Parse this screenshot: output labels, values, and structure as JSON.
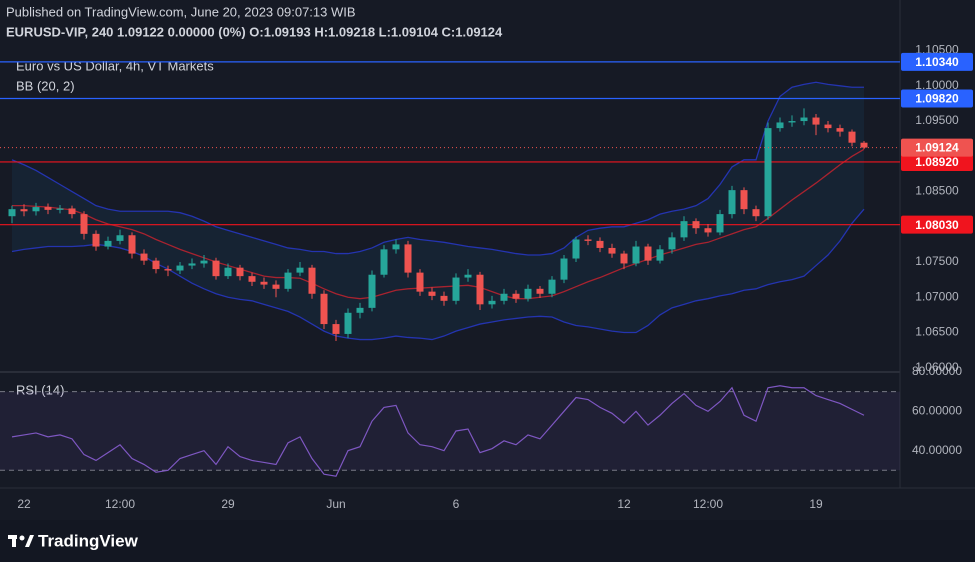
{
  "header": {
    "published": "Published on TradingView.com, June 20, 2023 09:07:13 WIB",
    "symbol_line": "EURUSD-VIP, 240  1.09122  0.00000 (0%)  O:1.09193  H:1.09218  L:1.09104  C:1.09124"
  },
  "chart_data": {
    "type": "candlestick",
    "title": "Euro vs US Dollar, 4h, VT Markets",
    "indicator": "BB (20, 2)",
    "categories": [
      null,
      "22",
      null,
      null,
      null,
      null,
      null,
      null,
      null,
      "12:00",
      null,
      null,
      null,
      null,
      null,
      null,
      null,
      null,
      "29",
      null,
      null,
      null,
      null,
      null,
      null,
      null,
      null,
      "Jun",
      null,
      null,
      null,
      null,
      null,
      null,
      null,
      null,
      null,
      "6",
      null,
      null,
      null,
      null,
      null,
      null,
      null,
      null,
      null,
      null,
      null,
      null,
      null,
      "12",
      null,
      null,
      null,
      null,
      null,
      null,
      "12:00",
      null,
      null,
      null,
      null,
      null,
      null,
      null,
      null,
      "19",
      null,
      null,
      null,
      null
    ],
    "open": [
      1.0815,
      1.0825,
      1.0822,
      1.0828,
      1.0824,
      1.0826,
      1.0818,
      1.079,
      1.0772,
      1.078,
      1.0788,
      1.0762,
      1.0752,
      1.074,
      1.0738,
      1.0745,
      1.0748,
      1.0752,
      1.073,
      1.0742,
      1.073,
      1.0722,
      1.0718,
      1.0712,
      1.0735,
      1.0742,
      1.0705,
      1.0662,
      1.0648,
      1.0678,
      1.0685,
      1.0732,
      1.0768,
      1.0775,
      1.0735,
      1.0708,
      1.0702,
      1.0695,
      1.0728,
      1.0732,
      1.069,
      1.0695,
      1.0705,
      1.0698,
      1.0712,
      1.0705,
      1.0725,
      1.0755,
      1.0782,
      1.078,
      1.077,
      1.0762,
      1.0748,
      1.0772,
      1.0752,
      1.0768,
      1.0785,
      1.0808,
      1.0798,
      1.0792,
      1.0818,
      1.0852,
      1.0825,
      1.0815,
      1.094,
      1.0948,
      1.095,
      1.0955,
      1.0945,
      1.094,
      1.0935,
      1.09193
    ],
    "high": [
      1.083,
      1.0832,
      1.0834,
      1.0833,
      1.0831,
      1.083,
      1.0822,
      1.0795,
      1.0786,
      1.0796,
      1.0792,
      1.0768,
      1.0756,
      1.0745,
      1.075,
      1.0755,
      1.076,
      1.0756,
      1.0748,
      1.0746,
      1.0735,
      1.0728,
      1.0724,
      1.074,
      1.075,
      1.0746,
      1.071,
      1.0668,
      1.0684,
      1.0692,
      1.0738,
      1.0774,
      1.0782,
      1.078,
      1.074,
      1.0714,
      1.0708,
      1.0734,
      1.074,
      1.0736,
      1.0702,
      1.0712,
      1.071,
      1.0718,
      1.0716,
      1.073,
      1.076,
      1.0786,
      1.0788,
      1.0785,
      1.0776,
      1.0766,
      1.078,
      1.0776,
      1.0774,
      1.0792,
      1.0815,
      1.0812,
      1.0804,
      1.0824,
      1.0858,
      1.0856,
      1.083,
      1.0948,
      1.0955,
      1.0958,
      1.0968,
      1.096,
      1.095,
      1.0945,
      1.0938,
      1.09218
    ],
    "low": [
      1.0805,
      1.0815,
      1.0816,
      1.0818,
      1.0819,
      1.0812,
      1.0782,
      1.0766,
      1.0768,
      1.0775,
      1.0755,
      1.0746,
      1.0734,
      1.073,
      1.0733,
      1.074,
      1.0742,
      1.0725,
      1.0726,
      1.0724,
      1.0716,
      1.0712,
      1.07,
      1.0708,
      1.073,
      1.0698,
      1.0655,
      1.0638,
      1.0642,
      1.067,
      1.068,
      1.0728,
      1.0762,
      1.0728,
      1.0702,
      1.0696,
      1.0688,
      1.069,
      1.0722,
      1.0682,
      1.0684,
      1.069,
      1.0692,
      1.0694,
      1.0699,
      1.07,
      1.072,
      1.075,
      1.0774,
      1.0764,
      1.0756,
      1.074,
      1.0744,
      1.0746,
      1.0748,
      1.0762,
      1.078,
      1.079,
      1.0786,
      1.0788,
      1.0812,
      1.0818,
      1.0808,
      1.081,
      1.0935,
      1.0942,
      1.0944,
      1.093,
      1.0934,
      1.0928,
      1.0914,
      1.09104
    ],
    "close": [
      1.0825,
      1.0822,
      1.0828,
      1.0824,
      1.0826,
      1.0818,
      1.079,
      1.0772,
      1.078,
      1.0788,
      1.0762,
      1.0752,
      1.074,
      1.0738,
      1.0745,
      1.0748,
      1.0752,
      1.073,
      1.0742,
      1.073,
      1.0722,
      1.0718,
      1.0712,
      1.0735,
      1.0742,
      1.0705,
      1.0662,
      1.0648,
      1.0678,
      1.0685,
      1.0732,
      1.0768,
      1.0775,
      1.0735,
      1.0708,
      1.0702,
      1.0695,
      1.0728,
      1.0732,
      1.069,
      1.0695,
      1.0705,
      1.0698,
      1.0712,
      1.0705,
      1.0725,
      1.0755,
      1.0782,
      1.078,
      1.077,
      1.0762,
      1.0748,
      1.0772,
      1.0752,
      1.0768,
      1.0785,
      1.0808,
      1.0798,
      1.0792,
      1.0818,
      1.0852,
      1.0825,
      1.0815,
      1.094,
      1.0948,
      1.095,
      1.0955,
      1.0945,
      1.094,
      1.0935,
      1.09193,
      1.09124
    ],
    "up_color": "#26a69a",
    "down_color": "#ef5350",
    "bb_upper": {
      "color": "#2434b0",
      "values": [
        1.0895,
        1.0888,
        1.088,
        1.087,
        1.086,
        1.085,
        1.084,
        1.083,
        1.0825,
        1.0822,
        1.0822,
        1.0822,
        1.0822,
        1.0822,
        1.082,
        1.0815,
        1.0808,
        1.08,
        1.0795,
        1.079,
        1.0785,
        1.078,
        1.0775,
        1.077,
        1.0768,
        1.0765,
        1.0765,
        1.0762,
        1.0762,
        1.0765,
        1.077,
        1.0778,
        1.0782,
        1.0785,
        1.0782,
        1.078,
        1.0778,
        1.0775,
        1.0772,
        1.077,
        1.0768,
        1.0765,
        1.0762,
        1.076,
        1.076,
        1.0762,
        1.077,
        1.0785,
        1.0795,
        1.0798,
        1.08,
        1.08,
        1.0805,
        1.081,
        1.0818,
        1.0822,
        1.0825,
        1.083,
        1.084,
        1.086,
        1.0885,
        1.0895,
        1.0895,
        1.095,
        1.0985,
        1.0998,
        1.1002,
        1.1005,
        1.1002,
        1.1,
        1.0998,
        1.0998
      ]
    },
    "bb_middle": {
      "color": "#a8232f",
      "values": [
        1.083,
        1.083,
        1.0829,
        1.0828,
        1.0826,
        1.0824,
        1.0818,
        1.081,
        1.0804,
        1.08,
        1.0796,
        1.079,
        1.0782,
        1.0775,
        1.0768,
        1.0762,
        1.0756,
        1.075,
        1.0745,
        1.074,
        1.0735,
        1.073,
        1.0728,
        1.0728,
        1.0727,
        1.072,
        1.0712,
        1.0705,
        1.07,
        1.0698,
        1.07,
        1.0705,
        1.071,
        1.0712,
        1.0713,
        1.0714,
        1.0715,
        1.0716,
        1.0717,
        1.0714,
        1.0708,
        1.0702,
        1.0698,
        1.0698,
        1.07,
        1.0702,
        1.0708,
        1.0715,
        1.0722,
        1.0728,
        1.0735,
        1.0742,
        1.0748,
        1.0754,
        1.076,
        1.0765,
        1.077,
        1.0775,
        1.0778,
        1.0784,
        1.079,
        1.0796,
        1.08,
        1.0812,
        1.0825,
        1.0838,
        1.085,
        1.0862,
        1.0875,
        1.0888,
        1.09,
        1.091
      ]
    },
    "bb_lower": {
      "color": "#2434b0",
      "values": [
        1.0765,
        1.0768,
        1.077,
        1.0772,
        1.0772,
        1.0772,
        1.0773,
        1.0775,
        1.0773,
        1.077,
        1.0765,
        1.0758,
        1.0748,
        1.074,
        1.073,
        1.072,
        1.0712,
        1.0705,
        1.07,
        1.0697,
        1.0695,
        1.069,
        1.0685,
        1.068,
        1.0672,
        1.0662,
        1.0652,
        1.0645,
        1.0642,
        1.064,
        1.064,
        1.0642,
        1.0645,
        1.0643,
        1.0642,
        1.064,
        1.0645,
        1.0652,
        1.0657,
        1.0662,
        1.0665,
        1.0668,
        1.067,
        1.0672,
        1.0673,
        1.0672,
        1.0665,
        1.066,
        1.0658,
        1.0655,
        1.0652,
        1.065,
        1.065,
        1.066,
        1.0675,
        1.0685,
        1.069,
        1.0695,
        1.0698,
        1.0702,
        1.0705,
        1.071,
        1.0712,
        1.0718,
        1.0722,
        1.0725,
        1.073,
        1.0745,
        1.076,
        1.078,
        1.0805,
        1.0825
      ]
    },
    "ylim": [
      1.0594,
      1.1065
    ],
    "yticks": [
      {
        "value": 1.06,
        "label": "1.06000"
      },
      {
        "value": 1.065,
        "label": "1.06500"
      },
      {
        "value": 1.07,
        "label": "1.07000"
      },
      {
        "value": 1.075,
        "label": "1.07500"
      },
      {
        "value": 1.085,
        "label": "1.08500"
      },
      {
        "value": 1.095,
        "label": "1.09500"
      },
      {
        "value": 1.1,
        "label": "1.10000"
      },
      {
        "value": 1.105,
        "label": "1.10500"
      }
    ],
    "grid": false,
    "levels": [
      {
        "value": 1.1034,
        "label": "1.10340",
        "color": "#2962ff"
      },
      {
        "value": 1.0982,
        "label": "1.09820",
        "color": "#2962ff"
      },
      {
        "value": 1.0892,
        "label": "1.08920",
        "color": "#f0141e"
      },
      {
        "value": 1.0803,
        "label": "1.08030",
        "color": "#f0141e"
      }
    ],
    "last": {
      "value": 1.09124,
      "label": "1.09124",
      "color": "#ef5350"
    },
    "rsi": {
      "name": "RSI (14)",
      "color": "#7e57c2",
      "values": [
        47,
        48,
        49,
        47,
        48,
        46,
        38,
        35,
        39,
        43,
        36,
        33,
        29,
        30,
        36,
        38,
        40,
        33,
        42,
        37,
        35,
        34,
        33,
        44,
        47,
        36,
        28,
        27,
        40,
        42,
        55,
        62,
        63,
        49,
        43,
        42,
        40,
        50,
        51,
        39,
        41,
        45,
        43,
        48,
        46,
        53,
        60,
        67,
        66,
        62,
        59,
        54,
        60,
        53,
        58,
        64,
        69,
        63,
        60,
        65,
        72,
        58,
        55,
        72,
        73,
        72,
        72,
        68,
        66,
        64,
        61,
        58
      ],
      "ylim": [
        21,
        80
      ],
      "yticks": [
        {
          "value": 80,
          "label": "80.00000"
        },
        {
          "value": 60,
          "label": "60.00000"
        },
        {
          "value": 40,
          "label": "40.00000"
        }
      ],
      "bounds": [
        30,
        70
      ]
    }
  },
  "footer": {
    "brand": "TradingView"
  }
}
